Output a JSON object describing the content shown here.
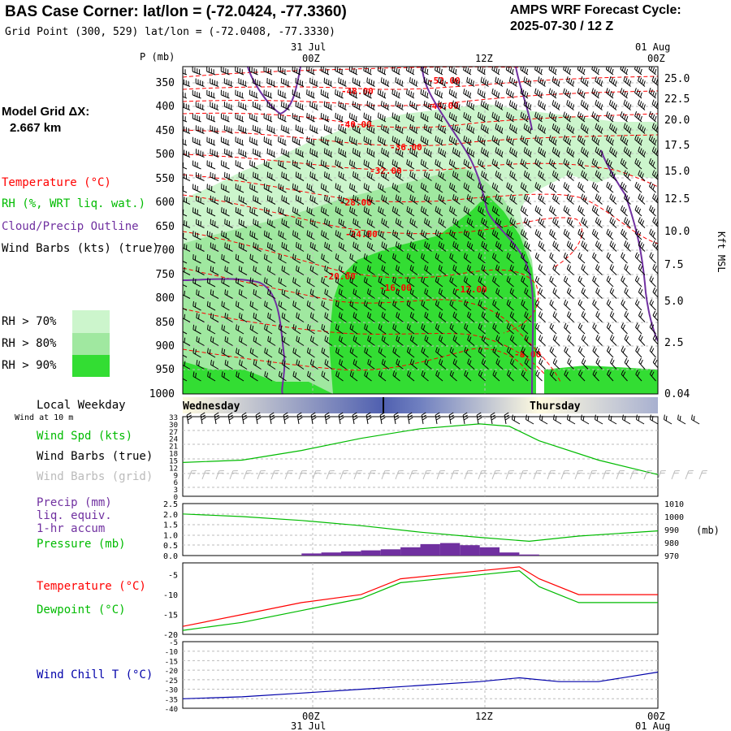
{
  "header": {
    "title": "BAS Case Corner:  lat/lon = (-72.0424, -77.3360)",
    "subtitle": "Grid Point (300, 529) lat/lon = (-72.0408, -77.3330)",
    "cycle_line1": "AMPS WRF Forecast Cycle:",
    "cycle_line2": "2025-07-30 / 12  Z",
    "model_grid_label": "Model Grid ΔX:",
    "model_grid_value": "2.667 km"
  },
  "time_axis": {
    "top_dates": [
      "31 Jul",
      "01 Aug"
    ],
    "ticks": [
      "00Z",
      "12Z",
      "00Z"
    ],
    "bottom_ticks": [
      "00Z",
      "12Z",
      "00Z"
    ],
    "bottom_dates": [
      "31 Jul",
      "01 Aug"
    ],
    "weekdays": [
      "Wednesday",
      "Thursday"
    ],
    "weekday_label": "Local Weekday"
  },
  "cross_section": {
    "pressure_label": "P (mb)",
    "pressure_levels": [
      "350",
      "400",
      "450",
      "500",
      "550",
      "600",
      "650",
      "700",
      "750",
      "800",
      "850",
      "900",
      "950",
      "1000"
    ],
    "height_ticks": [
      "25.0",
      "22.5",
      "20.0",
      "17.5",
      "15.0",
      "12.5",
      "10.0",
      "7.5",
      "5.0",
      "2.5",
      "0.04"
    ],
    "height_label": "Kft MSL",
    "legend": {
      "temperature": "Temperature (°C)",
      "rh": "RH (%, WRT liq. wat.)",
      "cloud": "Cloud/Precip Outline",
      "wind": "Wind Barbs (kts) (true)"
    },
    "rh_legend": [
      "RH > 70%",
      "RH > 80%",
      "RH > 90%"
    ],
    "temperature_labels": [
      "-52.00",
      "-48.00",
      "-44.00",
      "-40.00",
      "-36.00",
      "-32.00",
      "-28.00",
      "-24.00",
      "-20.00",
      "-16.00",
      "-12.00",
      "-8.00"
    ]
  },
  "colors": {
    "rh70": "#ccf5cc",
    "rh80": "#a0e8a0",
    "rh90": "#33dd33",
    "temperature": "#ff0000",
    "cloud": "#7030a0",
    "wind_speed": "#00bb00",
    "pressure": "#00bb00",
    "precip": "#7030a0",
    "dewpoint": "#00bb00",
    "windchill": "#0000aa"
  },
  "panels": {
    "wind": {
      "sublabel": "Wind at 10 m",
      "spd_label": "Wind Spd (kts)",
      "barbs_true": "Wind Barbs (true)",
      "barbs_grid": "Wind Barbs (grid)",
      "y_ticks": [
        "33",
        "30",
        "27",
        "24",
        "21",
        "18",
        "15",
        "12",
        "9",
        "6",
        "3",
        "0"
      ]
    },
    "precip": {
      "label1": "Precip (mm)",
      "label2": "liq. equiv.",
      "label3": "1-hr accum",
      "label4": "Pressure (mb)",
      "left_ticks": [
        "2.5",
        "2.0",
        "1.5",
        "1.0",
        "0.5",
        "0.0"
      ],
      "right_ticks": [
        "1010",
        "1000",
        "990",
        "980",
        "970"
      ],
      "right_unit": "(mb)"
    },
    "temp": {
      "label1": "Temperature (°C)",
      "label2": "Dewpoint (°C)",
      "y_ticks": [
        "-5",
        "-10",
        "-15",
        "-20"
      ]
    },
    "chill": {
      "label": "Wind Chill T (°C)",
      "y_ticks": [
        "-5",
        "-10",
        "-15",
        "-20",
        "-25",
        "-30",
        "-35",
        "-40"
      ]
    }
  },
  "chart_data": [
    {
      "type": "line",
      "title": "Wind Spd (kts)",
      "x_hours": [
        0,
        6,
        12,
        18,
        24,
        30,
        33,
        36,
        42,
        48
      ],
      "values": [
        14,
        15,
        19,
        24,
        28,
        30,
        29,
        23,
        15,
        9
      ],
      "ylim": [
        0,
        33
      ]
    },
    {
      "type": "bar",
      "title": "Precip (mm)",
      "x_hours": [
        12,
        14,
        16,
        18,
        20,
        22,
        24,
        26,
        28,
        30,
        32,
        34
      ],
      "values": [
        0.1,
        0.15,
        0.2,
        0.25,
        0.3,
        0.4,
        0.55,
        0.6,
        0.5,
        0.4,
        0.15,
        0.05
      ],
      "ylim": [
        0,
        2.5
      ]
    },
    {
      "type": "line",
      "title": "Pressure (mb)",
      "x_hours": [
        0,
        6,
        12,
        18,
        24,
        30,
        35,
        40,
        48
      ],
      "values": [
        1002,
        1000,
        997,
        993,
        988,
        984,
        981,
        985,
        989
      ],
      "ylim": [
        970,
        1010
      ]
    },
    {
      "type": "line",
      "title": "Temperature (°C)",
      "x_hours": [
        0,
        6,
        12,
        18,
        22,
        26,
        30,
        34,
        36,
        40,
        48
      ],
      "values": [
        -18,
        -15,
        -12,
        -10,
        -6,
        -5,
        -4,
        -3,
        -6,
        -10,
        -10
      ],
      "ylim": [
        -20,
        -2
      ]
    },
    {
      "type": "line",
      "title": "Dewpoint (°C)",
      "x_hours": [
        0,
        6,
        12,
        18,
        22,
        26,
        30,
        34,
        36,
        40,
        48
      ],
      "values": [
        -19,
        -17,
        -14,
        -11,
        -7,
        -6,
        -5,
        -4,
        -8,
        -12,
        -12
      ],
      "ylim": [
        -20,
        -2
      ]
    },
    {
      "type": "line",
      "title": "Wind Chill T (°C)",
      "x_hours": [
        0,
        6,
        12,
        18,
        24,
        30,
        34,
        38,
        42,
        48
      ],
      "values": [
        -35,
        -34,
        -32,
        -30,
        -28,
        -26,
        -24,
        -26,
        -26,
        -21
      ],
      "ylim": [
        -40,
        -5
      ]
    }
  ]
}
